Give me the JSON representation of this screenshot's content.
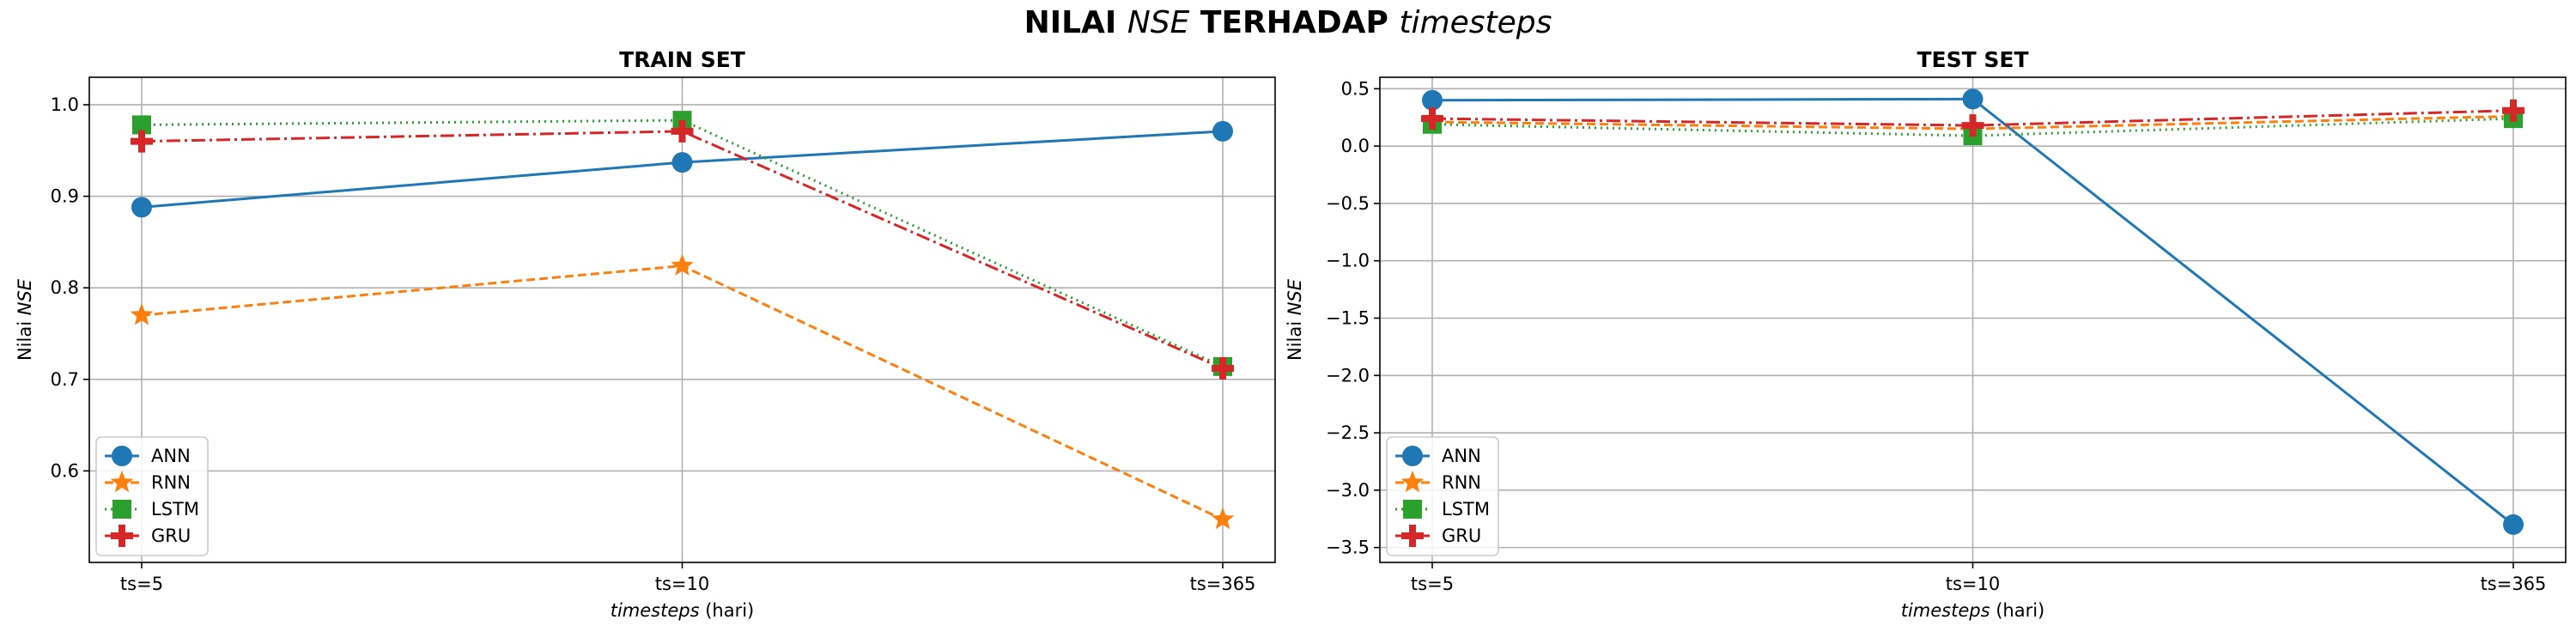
{
  "figure_title": {
    "part1": "NILAI ",
    "part2": "NSE",
    "part3": " TERHADAP ",
    "part4": "timesteps"
  },
  "xlabel": {
    "italic": "timesteps",
    "rest": " (hari)"
  },
  "ylabel": {
    "prefix": "Nilai ",
    "italic": "NSE"
  },
  "colors": {
    "ANN": "#1f77b4",
    "RNN": "#ff7f0e",
    "LSTM": "#2ca02c",
    "GRU": "#d62728"
  },
  "legend_location": "lower-left",
  "chart_data": [
    {
      "type": "line",
      "title": "TRAIN SET",
      "categories": [
        "ts=5",
        "ts=10",
        "ts=365"
      ],
      "ylim": [
        0.5,
        1.03
      ],
      "yticks": [
        0.6,
        0.7,
        0.8,
        0.9,
        1.0
      ],
      "ytick_labels": [
        "0.6",
        "0.7",
        "0.8",
        "0.9",
        "1.0"
      ],
      "grid": true,
      "series": [
        {
          "name": "ANN",
          "values": [
            0.888,
            0.937,
            0.971
          ]
        },
        {
          "name": "RNN",
          "values": [
            0.77,
            0.824,
            0.547
          ]
        },
        {
          "name": "LSTM",
          "values": [
            0.978,
            0.983,
            0.714
          ]
        },
        {
          "name": "GRU",
          "values": [
            0.96,
            0.971,
            0.712
          ]
        }
      ]
    },
    {
      "type": "line",
      "title": "TEST SET",
      "categories": [
        "ts=5",
        "ts=10",
        "ts=365"
      ],
      "ylim": [
        -3.63,
        0.6
      ],
      "yticks": [
        0.5,
        0.0,
        -0.5,
        -1.0,
        -1.5,
        -2.0,
        -2.5,
        -3.0,
        -3.5
      ],
      "ytick_labels": [
        "0.5",
        "0.0",
        "−0.5",
        "−1.0",
        "−1.5",
        "−2.0",
        "−2.5",
        "−3.0",
        "−3.5"
      ],
      "grid": true,
      "series": [
        {
          "name": "ANN",
          "values": [
            0.4,
            0.41,
            -3.3
          ]
        },
        {
          "name": "RNN",
          "values": [
            0.21,
            0.15,
            0.26
          ]
        },
        {
          "name": "LSTM",
          "values": [
            0.19,
            0.09,
            0.24
          ]
        },
        {
          "name": "GRU",
          "values": [
            0.24,
            0.18,
            0.31
          ]
        }
      ]
    }
  ]
}
